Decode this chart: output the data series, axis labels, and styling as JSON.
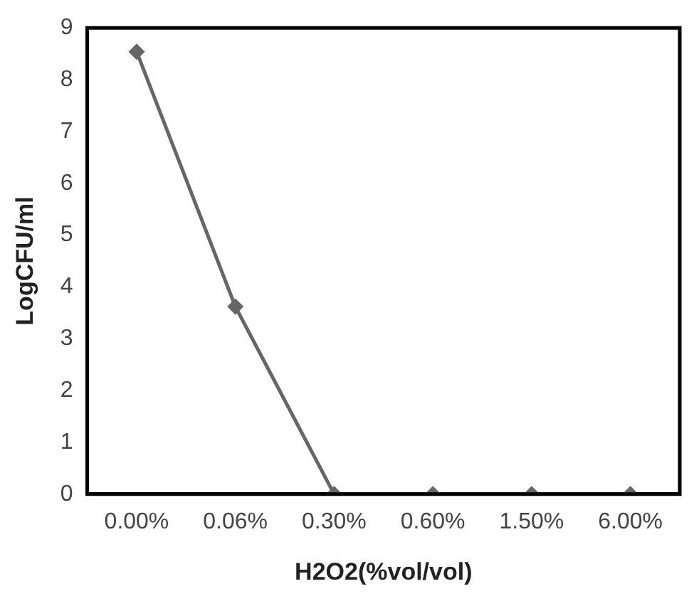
{
  "chart_data": {
    "type": "line",
    "xlabel": "H2O2(%vol/vol)",
    "ylabel": "LogCFU/ml",
    "categories": [
      "0.00%",
      "0.06%",
      "0.30%",
      "0.60%",
      "1.50%",
      "6.00%"
    ],
    "series": [
      {
        "color": "#666666",
        "values": [
          8.54,
          3.62,
          0,
          0,
          0,
          0
        ]
      }
    ],
    "ylim": [
      0,
      9
    ],
    "yticks": [
      0,
      1,
      2,
      3,
      4,
      5,
      6,
      7,
      8,
      9
    ],
    "grid": false,
    "legend": false,
    "marker": "diamond",
    "line_style": "solid"
  }
}
